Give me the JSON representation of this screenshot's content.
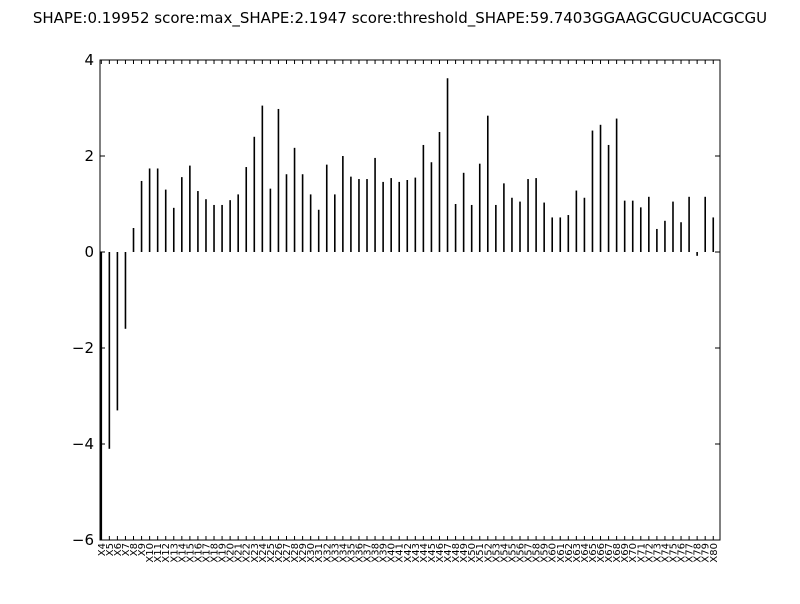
{
  "chart_data": {
    "type": "bar",
    "title": "SHAPE:0.19952 score:max_SHAPE:2.1947 score:threshold_SHAPE:59.7403GGAAGCGUCUACGCGU",
    "xlabel": "",
    "ylabel": "",
    "ylim": [
      -6,
      4
    ],
    "yticks": [
      4,
      2,
      0,
      -2,
      -4,
      -6
    ],
    "ytick_labels": [
      "4",
      "2",
      "0",
      "−2",
      "−4",
      "−6"
    ],
    "grid": false,
    "bar_color": "#000000",
    "categories": [
      "X4",
      "X5",
      "X6",
      "X7",
      "X8",
      "X9",
      "X10",
      "X11",
      "X12",
      "X13",
      "X14",
      "X15",
      "X16",
      "X17",
      "X18",
      "X19",
      "X20",
      "X21",
      "X22",
      "X23",
      "X24",
      "X25",
      "X26",
      "X27",
      "X28",
      "X29",
      "X30",
      "X31",
      "X32",
      "X33",
      "X34",
      "X35",
      "X36",
      "X37",
      "X38",
      "X39",
      "X40",
      "X41",
      "X42",
      "X43",
      "X44",
      "X45",
      "X46",
      "X47",
      "X48",
      "X49",
      "X50",
      "X51",
      "X52",
      "X53",
      "X54",
      "X55",
      "X56",
      "X57",
      "X58",
      "X59",
      "X60",
      "X61",
      "X62",
      "X63",
      "X64",
      "X65",
      "X66",
      "X67",
      "X68",
      "X69",
      "X70",
      "X71",
      "X72",
      "X73",
      "X74",
      "X75",
      "X76",
      "X77",
      "X78",
      "X79",
      "X80"
    ],
    "values": [
      -6.0,
      -4.1,
      -3.3,
      -1.6,
      0.5,
      1.48,
      1.74,
      1.74,
      1.3,
      0.92,
      1.56,
      1.8,
      1.27,
      1.1,
      0.98,
      0.98,
      1.08,
      1.2,
      1.77,
      2.4,
      3.05,
      1.32,
      2.98,
      1.62,
      2.17,
      1.62,
      1.2,
      0.88,
      1.82,
      1.2,
      2.0,
      1.57,
      1.52,
      1.52,
      1.96,
      1.46,
      1.54,
      1.46,
      1.5,
      1.55,
      2.23,
      1.87,
      2.5,
      3.62,
      1.0,
      1.65,
      0.98,
      1.84,
      2.84,
      0.98,
      1.43,
      1.13,
      1.05,
      1.52,
      1.54,
      1.03,
      0.72,
      0.72,
      0.77,
      1.28,
      1.13,
      2.53,
      2.65,
      2.23,
      2.78,
      1.07,
      1.07,
      0.93,
      1.15,
      0.48,
      0.65,
      1.05,
      0.62,
      1.15,
      -0.08,
      1.15,
      0.72
    ]
  }
}
